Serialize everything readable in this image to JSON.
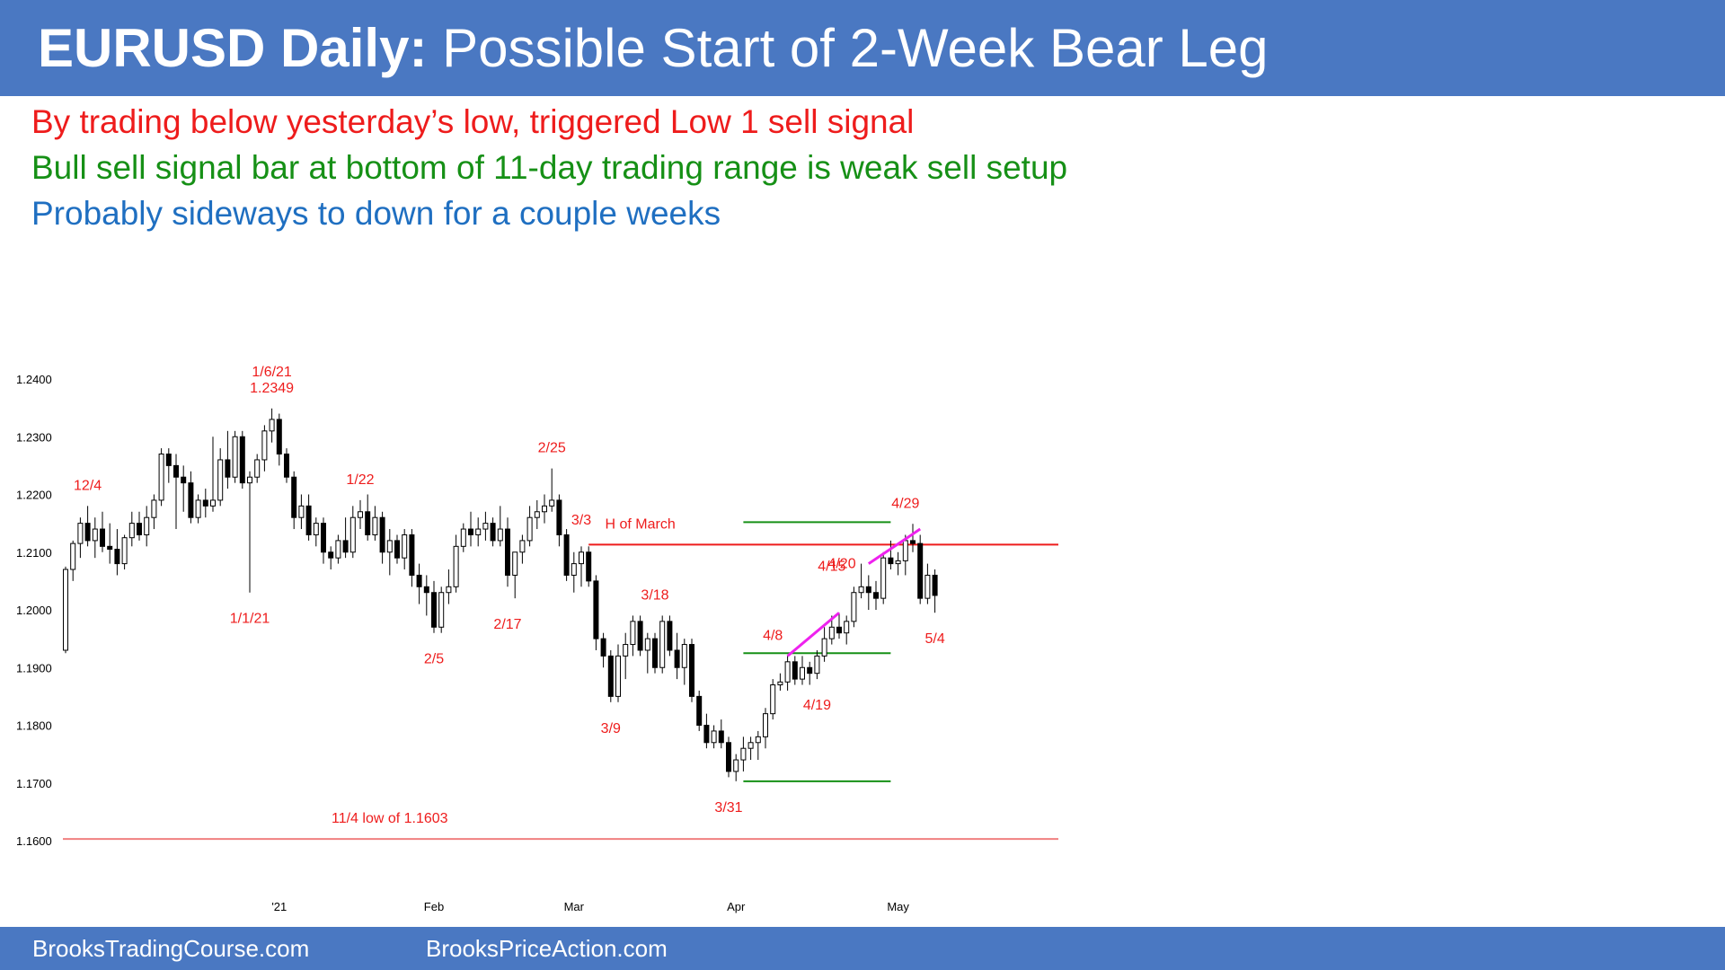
{
  "header": {
    "title_bold": "EURUSD Daily:",
    "title_rest": " Possible Start of 2-Week Bear Leg"
  },
  "notes": [
    "By trading below yesterday’s low, triggered Low 1 sell signal",
    "Bull sell signal bar at bottom of 11-day trading range is weak sell setup",
    "Probably sideways to down for a couple weeks"
  ],
  "colors": {
    "header_bg": "#4a78c2",
    "red": "#ee1c1c",
    "green": "#169016",
    "blue": "#1f6fc1",
    "magenta": "#ee22ee",
    "pink_line": "#f08080"
  },
  "chart_data": {
    "type": "candlestick",
    "title": "EURUSD Daily",
    "ylim": [
      1.1585,
      1.2425
    ],
    "y_ticks": [
      "1.2400",
      "1.2300",
      "1.2200",
      "1.2100",
      "1.2000",
      "1.1900",
      "1.1800",
      "1.1700",
      "1.1600"
    ],
    "x_ticks": [
      {
        "label": "'21",
        "index": 29
      },
      {
        "label": "Feb",
        "index": 50
      },
      {
        "label": "Mar",
        "index": 69
      },
      {
        "label": "Apr",
        "index": 91
      },
      {
        "label": "May",
        "index": 113
      }
    ],
    "bars": [
      [
        1.193,
        1.2075,
        1.1925,
        1.207
      ],
      [
        1.207,
        1.212,
        1.205,
        1.2115
      ],
      [
        1.2115,
        1.216,
        1.209,
        1.215
      ],
      [
        1.215,
        1.218,
        1.211,
        1.212
      ],
      [
        1.212,
        1.216,
        1.209,
        1.214
      ],
      [
        1.214,
        1.217,
        1.21,
        1.211
      ],
      [
        1.211,
        1.215,
        1.208,
        1.2105
      ],
      [
        1.2105,
        1.214,
        1.206,
        1.208
      ],
      [
        1.208,
        1.213,
        1.207,
        1.2125
      ],
      [
        1.2125,
        1.217,
        1.211,
        1.215
      ],
      [
        1.215,
        1.217,
        1.212,
        1.213
      ],
      [
        1.213,
        1.218,
        1.211,
        1.216
      ],
      [
        1.216,
        1.22,
        1.214,
        1.219
      ],
      [
        1.219,
        1.228,
        1.218,
        1.227
      ],
      [
        1.227,
        1.228,
        1.222,
        1.225
      ],
      [
        1.225,
        1.227,
        1.214,
        1.223
      ],
      [
        1.223,
        1.225,
        1.217,
        1.222
      ],
      [
        1.222,
        1.224,
        1.215,
        1.216
      ],
      [
        1.216,
        1.22,
        1.215,
        1.219
      ],
      [
        1.219,
        1.221,
        1.216,
        1.218
      ],
      [
        1.218,
        1.23,
        1.217,
        1.219
      ],
      [
        1.219,
        1.228,
        1.218,
        1.226
      ],
      [
        1.226,
        1.231,
        1.221,
        1.223
      ],
      [
        1.223,
        1.231,
        1.222,
        1.23
      ],
      [
        1.23,
        1.231,
        1.221,
        1.222
      ],
      [
        1.222,
        1.224,
        1.203,
        1.223
      ],
      [
        1.223,
        1.227,
        1.222,
        1.226
      ],
      [
        1.226,
        1.232,
        1.224,
        1.231
      ],
      [
        1.231,
        1.2349,
        1.229,
        1.233
      ],
      [
        1.233,
        1.234,
        1.225,
        1.227
      ],
      [
        1.227,
        1.228,
        1.222,
        1.223
      ],
      [
        1.223,
        1.224,
        1.214,
        1.216
      ],
      [
        1.216,
        1.22,
        1.214,
        1.218
      ],
      [
        1.218,
        1.22,
        1.212,
        1.213
      ],
      [
        1.213,
        1.216,
        1.211,
        1.215
      ],
      [
        1.215,
        1.216,
        1.208,
        1.21
      ],
      [
        1.21,
        1.211,
        1.207,
        1.209
      ],
      [
        1.209,
        1.213,
        1.208,
        1.212
      ],
      [
        1.212,
        1.216,
        1.209,
        1.21
      ],
      [
        1.21,
        1.218,
        1.209,
        1.216
      ],
      [
        1.216,
        1.219,
        1.214,
        1.217
      ],
      [
        1.217,
        1.22,
        1.212,
        1.213
      ],
      [
        1.213,
        1.218,
        1.212,
        1.216
      ],
      [
        1.216,
        1.217,
        1.208,
        1.21
      ],
      [
        1.21,
        1.214,
        1.206,
        1.212
      ],
      [
        1.212,
        1.213,
        1.208,
        1.209
      ],
      [
        1.209,
        1.214,
        1.207,
        1.213
      ],
      [
        1.213,
        1.214,
        1.204,
        1.206
      ],
      [
        1.206,
        1.208,
        1.201,
        1.204
      ],
      [
        1.204,
        1.206,
        1.199,
        1.203
      ],
      [
        1.203,
        1.205,
        1.196,
        1.197
      ],
      [
        1.197,
        1.204,
        1.196,
        1.203
      ],
      [
        1.203,
        1.207,
        1.201,
        1.204
      ],
      [
        1.204,
        1.213,
        1.203,
        1.211
      ],
      [
        1.211,
        1.215,
        1.21,
        1.214
      ],
      [
        1.214,
        1.217,
        1.211,
        1.213
      ],
      [
        1.213,
        1.216,
        1.211,
        1.214
      ],
      [
        1.214,
        1.217,
        1.212,
        1.215
      ],
      [
        1.215,
        1.216,
        1.211,
        1.212
      ],
      [
        1.212,
        1.218,
        1.211,
        1.214
      ],
      [
        1.214,
        1.216,
        1.204,
        1.206
      ],
      [
        1.206,
        1.21,
        1.202,
        1.21
      ],
      [
        1.21,
        1.213,
        1.208,
        1.212
      ],
      [
        1.212,
        1.218,
        1.211,
        1.216
      ],
      [
        1.216,
        1.219,
        1.214,
        1.217
      ],
      [
        1.217,
        1.22,
        1.215,
        1.218
      ],
      [
        1.218,
        1.2245,
        1.217,
        1.219
      ],
      [
        1.219,
        1.22,
        1.211,
        1.213
      ],
      [
        1.213,
        1.214,
        1.205,
        1.206
      ],
      [
        1.206,
        1.21,
        1.203,
        1.208
      ],
      [
        1.208,
        1.211,
        1.204,
        1.21
      ],
      [
        1.21,
        1.211,
        1.204,
        1.205
      ],
      [
        1.205,
        1.206,
        1.193,
        1.195
      ],
      [
        1.195,
        1.196,
        1.19,
        1.192
      ],
      [
        1.192,
        1.193,
        1.184,
        1.185
      ],
      [
        1.185,
        1.194,
        1.184,
        1.192
      ],
      [
        1.192,
        1.196,
        1.188,
        1.194
      ],
      [
        1.194,
        1.199,
        1.192,
        1.198
      ],
      [
        1.198,
        1.199,
        1.192,
        1.193
      ],
      [
        1.193,
        1.196,
        1.189,
        1.195
      ],
      [
        1.195,
        1.196,
        1.189,
        1.19
      ],
      [
        1.19,
        1.199,
        1.189,
        1.198
      ],
      [
        1.198,
        1.199,
        1.192,
        1.193
      ],
      [
        1.193,
        1.196,
        1.188,
        1.19
      ],
      [
        1.19,
        1.195,
        1.187,
        1.194
      ],
      [
        1.194,
        1.195,
        1.184,
        1.185
      ],
      [
        1.185,
        1.186,
        1.179,
        1.18
      ],
      [
        1.18,
        1.182,
        1.176,
        1.177
      ],
      [
        1.177,
        1.18,
        1.176,
        1.179
      ],
      [
        1.179,
        1.181,
        1.176,
        1.177
      ],
      [
        1.177,
        1.178,
        1.171,
        1.172
      ],
      [
        1.172,
        1.175,
        1.1703,
        1.174
      ],
      [
        1.174,
        1.178,
        1.172,
        1.176
      ],
      [
        1.176,
        1.178,
        1.174,
        1.177
      ],
      [
        1.177,
        1.179,
        1.174,
        1.178
      ],
      [
        1.178,
        1.183,
        1.176,
        1.182
      ],
      [
        1.182,
        1.188,
        1.181,
        1.187
      ],
      [
        1.187,
        1.189,
        1.186,
        1.1875
      ],
      [
        1.1875,
        1.192,
        1.186,
        1.191
      ],
      [
        1.191,
        1.192,
        1.187,
        1.188
      ],
      [
        1.188,
        1.192,
        1.187,
        1.19
      ],
      [
        1.19,
        1.191,
        1.187,
        1.189
      ],
      [
        1.189,
        1.193,
        1.188,
        1.192
      ],
      [
        1.192,
        1.197,
        1.191,
        1.195
      ],
      [
        1.195,
        1.199,
        1.194,
        1.197
      ],
      [
        1.197,
        1.1995,
        1.195,
        1.196
      ],
      [
        1.196,
        1.199,
        1.194,
        1.198
      ],
      [
        1.198,
        1.204,
        1.197,
        1.203
      ],
      [
        1.203,
        1.208,
        1.202,
        1.204
      ],
      [
        1.204,
        1.206,
        1.2,
        1.203
      ],
      [
        1.203,
        1.205,
        1.2,
        1.202
      ],
      [
        1.202,
        1.21,
        1.201,
        1.209
      ],
      [
        1.209,
        1.212,
        1.207,
        1.208
      ],
      [
        1.208,
        1.21,
        1.206,
        1.2085
      ],
      [
        1.2085,
        1.213,
        1.206,
        1.212
      ],
      [
        1.212,
        1.2149,
        1.21,
        1.2115
      ],
      [
        1.2115,
        1.213,
        1.201,
        1.202
      ],
      [
        1.202,
        1.208,
        1.201,
        1.206
      ],
      [
        1.206,
        1.207,
        1.1995,
        1.2025
      ]
    ],
    "horizontal_lines": [
      {
        "label": "H of March",
        "y": 1.2113,
        "color": "red",
        "from_index": 71,
        "to_index": 124
      },
      {
        "label": "11/4 low of 1.1603",
        "y": 1.1603,
        "color": "pink",
        "from_index": 0,
        "to_index": 124
      },
      {
        "label": "",
        "y": 1.2152,
        "color": "green",
        "from_index": 92,
        "to_index": 112
      },
      {
        "label": "",
        "y": 1.1925,
        "color": "green",
        "from_index": 92,
        "to_index": 112
      },
      {
        "label": "",
        "y": 1.1703,
        "color": "green",
        "from_index": 92,
        "to_index": 112
      }
    ],
    "trend_lines": [
      {
        "color": "magenta",
        "from": {
          "index": 98,
          "value": 1.192
        },
        "to": {
          "index": 105,
          "value": 1.1995
        }
      },
      {
        "color": "magenta",
        "from": {
          "index": 109,
          "value": 1.208
        },
        "to": {
          "index": 116,
          "value": 1.214
        }
      }
    ],
    "annotations": [
      {
        "text": "1/6/21",
        "index": 28,
        "value": 1.2349,
        "pos": "above2"
      },
      {
        "text": "1.2349",
        "index": 28,
        "value": 1.2349,
        "pos": "above1"
      },
      {
        "text": "12/4",
        "index": 3,
        "value": 1.218,
        "pos": "above1"
      },
      {
        "text": "1/1/21",
        "index": 25,
        "value": 1.203,
        "pos": "below"
      },
      {
        "text": "1/22",
        "index": 40,
        "value": 1.219,
        "pos": "above1"
      },
      {
        "text": "2/5",
        "index": 50,
        "value": 1.196,
        "pos": "below"
      },
      {
        "text": "2/17",
        "index": 60,
        "value": 1.202,
        "pos": "below"
      },
      {
        "text": "2/25",
        "index": 66,
        "value": 1.2245,
        "pos": "above1"
      },
      {
        "text": "3/3",
        "index": 70,
        "value": 1.212,
        "pos": "above1"
      },
      {
        "text": "H of March",
        "index": 78,
        "value": 1.2113,
        "pos": "above1"
      },
      {
        "text": "3/9",
        "index": 74,
        "value": 1.184,
        "pos": "below"
      },
      {
        "text": "3/18",
        "index": 80,
        "value": 1.199,
        "pos": "above1"
      },
      {
        "text": "3/31",
        "index": 90,
        "value": 1.1703,
        "pos": "below"
      },
      {
        "text": "4/8",
        "index": 96,
        "value": 1.192,
        "pos": "above1"
      },
      {
        "text": "4/19",
        "index": 102,
        "value": 1.188,
        "pos": "below"
      },
      {
        "text": "4/15",
        "index": 104,
        "value": 1.204,
        "pos": "above1"
      },
      {
        "text": "4/20",
        "index": 108,
        "value": 1.208,
        "pos": "left"
      },
      {
        "text": "4/29",
        "index": 114,
        "value": 1.2149,
        "pos": "above1"
      },
      {
        "text": "5/4",
        "index": 118,
        "value": 1.1995,
        "pos": "below"
      },
      {
        "text": "11/4 low of 1.1603",
        "index": 44,
        "value": 1.1603,
        "pos": "above1"
      }
    ],
    "xlabel": "",
    "ylabel": ""
  },
  "footer": {
    "left": "BrooksTradingCourse.com",
    "right": "BrooksPriceAction.com"
  }
}
